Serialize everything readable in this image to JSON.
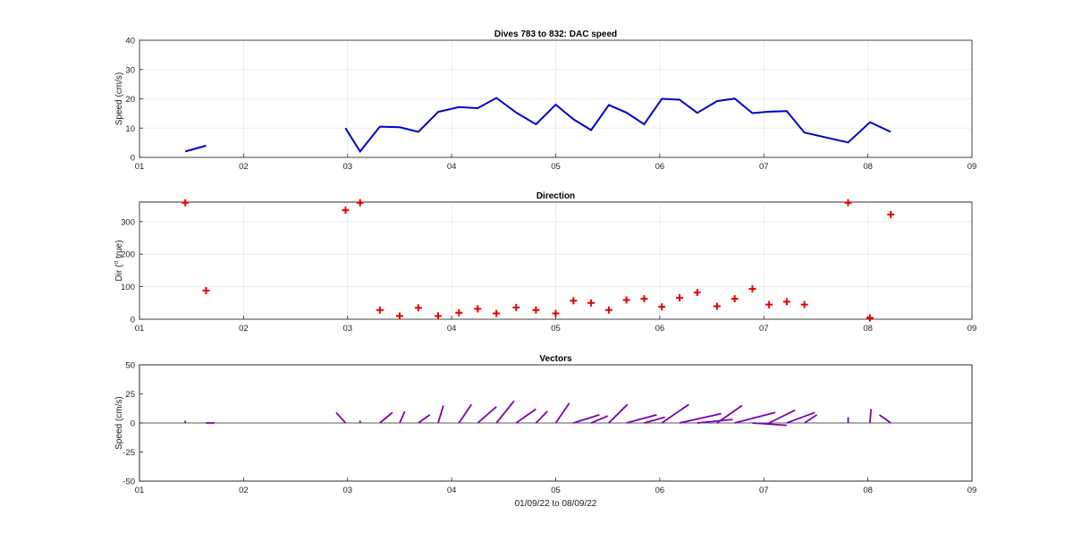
{
  "chart_data": [
    {
      "type": "line",
      "title": "Dives 783 to 832: DAC speed",
      "xlabel": "",
      "ylabel": "Speed (cm/s)",
      "xlim": [
        1,
        9
      ],
      "ylim": [
        0,
        40
      ],
      "xticks": [
        "01",
        "02",
        "03",
        "04",
        "05",
        "06",
        "07",
        "08",
        "09"
      ],
      "yticks": [
        "0",
        "10",
        "20",
        "30",
        "40"
      ],
      "grid": true,
      "colors": {
        "line": "#0000c8"
      },
      "segments": [
        {
          "x": [
            1.44,
            1.64
          ],
          "y": [
            2,
            4
          ]
        },
        {
          "x": [
            2.98,
            3.12,
            3.31,
            3.5,
            3.68,
            3.87,
            4.07,
            4.25,
            4.43,
            4.62,
            4.81,
            5.0,
            5.17,
            5.34,
            5.51,
            5.68,
            5.85,
            6.02,
            6.19,
            6.36,
            6.55,
            6.72,
            6.89,
            7.05,
            7.22,
            7.39,
            7.81,
            8.02,
            8.22
          ],
          "y": [
            10,
            2,
            10.5,
            10.3,
            8.7,
            15.5,
            17.2,
            16.8,
            20.3,
            15.3,
            11.3,
            18,
            13,
            9.3,
            17.9,
            15.3,
            11.3,
            20,
            19.7,
            15.2,
            19.2,
            20.1,
            15.1,
            15.6,
            15.8,
            8.5,
            5.1,
            12,
            8.7
          ]
        }
      ]
    },
    {
      "type": "scatter",
      "title": "Direction",
      "xlabel": "",
      "ylabel": "Dir (",
      "ylabel_degree": "o",
      "ylabel_rest": " true)",
      "xlim": [
        1,
        9
      ],
      "ylim": [
        0,
        360
      ],
      "xticks": [
        "01",
        "02",
        "03",
        "04",
        "05",
        "06",
        "07",
        "08",
        "09"
      ],
      "yticks": [
        "0",
        "100",
        "200",
        "300"
      ],
      "ytick_values": [
        0,
        100,
        200,
        300
      ],
      "grid": true,
      "colors": {
        "marker": "#e60000"
      },
      "points": [
        [
          1.44,
          358
        ],
        [
          1.64,
          88
        ],
        [
          2.98,
          335
        ],
        [
          3.12,
          358
        ],
        [
          3.31,
          28
        ],
        [
          3.5,
          10
        ],
        [
          3.68,
          35
        ],
        [
          3.87,
          10
        ],
        [
          4.07,
          20
        ],
        [
          4.25,
          32
        ],
        [
          4.43,
          18
        ],
        [
          4.62,
          36
        ],
        [
          4.81,
          28
        ],
        [
          5.0,
          18
        ],
        [
          5.17,
          57
        ],
        [
          5.34,
          50
        ],
        [
          5.51,
          28
        ],
        [
          5.68,
          59
        ],
        [
          5.85,
          63
        ],
        [
          6.02,
          38
        ],
        [
          6.19,
          66
        ],
        [
          6.36,
          82
        ],
        [
          6.55,
          40
        ],
        [
          6.72,
          63
        ],
        [
          6.89,
          93
        ],
        [
          7.05,
          45
        ],
        [
          7.22,
          54
        ],
        [
          7.39,
          45
        ],
        [
          7.81,
          358
        ],
        [
          8.02,
          4
        ],
        [
          8.22,
          322
        ]
      ]
    },
    {
      "type": "line",
      "title": "Vectors",
      "xlabel": "01/09/22 to 08/09/22",
      "ylabel": "Speed (cm/s)",
      "xlim": [
        1,
        9
      ],
      "ylim": [
        -50,
        50
      ],
      "xticks": [
        "01",
        "02",
        "03",
        "04",
        "05",
        "06",
        "07",
        "08",
        "09"
      ],
      "yticks": [
        "-50",
        "-25",
        "0",
        "25",
        "50"
      ],
      "ytick_values": [
        -50,
        -25,
        0,
        25,
        50
      ],
      "grid": false,
      "colors": {
        "vector": "#7a00b4",
        "zero_line": "#222222"
      },
      "vectors": [
        {
          "x0": 1.44,
          "x1": 1.44,
          "y1": 2
        },
        {
          "x0": 1.64,
          "x1": 1.72,
          "y1": 0
        },
        {
          "x0": 2.98,
          "x1": 2.89,
          "y1": 9
        },
        {
          "x0": 3.12,
          "x1": 3.12,
          "y1": 2
        },
        {
          "x0": 3.31,
          "x1": 3.43,
          "y1": 9
        },
        {
          "x0": 3.5,
          "x1": 3.55,
          "y1": 10
        },
        {
          "x0": 3.68,
          "x1": 3.79,
          "y1": 7
        },
        {
          "x0": 3.87,
          "x1": 3.92,
          "y1": 15
        },
        {
          "x0": 4.07,
          "x1": 4.19,
          "y1": 16
        },
        {
          "x0": 4.25,
          "x1": 4.43,
          "y1": 14
        },
        {
          "x0": 4.43,
          "x1": 4.6,
          "y1": 19
        },
        {
          "x0": 4.62,
          "x1": 4.81,
          "y1": 12
        },
        {
          "x0": 4.81,
          "x1": 4.92,
          "y1": 10
        },
        {
          "x0": 5.0,
          "x1": 5.13,
          "y1": 17
        },
        {
          "x0": 5.17,
          "x1": 5.42,
          "y1": 7
        },
        {
          "x0": 5.34,
          "x1": 5.5,
          "y1": 6
        },
        {
          "x0": 5.51,
          "x1": 5.69,
          "y1": 16
        },
        {
          "x0": 5.68,
          "x1": 5.97,
          "y1": 7
        },
        {
          "x0": 5.85,
          "x1": 6.05,
          "y1": 5
        },
        {
          "x0": 6.02,
          "x1": 6.28,
          "y1": 16
        },
        {
          "x0": 6.19,
          "x1": 6.59,
          "y1": 8
        },
        {
          "x0": 6.36,
          "x1": 6.7,
          "y1": 3
        },
        {
          "x0": 6.55,
          "x1": 6.79,
          "y1": 15
        },
        {
          "x0": 6.72,
          "x1": 7.11,
          "y1": 9
        },
        {
          "x0": 6.89,
          "x1": 7.22,
          "y1": -2
        },
        {
          "x0": 7.05,
          "x1": 7.3,
          "y1": 11
        },
        {
          "x0": 7.22,
          "x1": 7.49,
          "y1": 9
        },
        {
          "x0": 7.39,
          "x1": 7.51,
          "y1": 7
        },
        {
          "x0": 7.81,
          "x1": 7.81,
          "y1": 5
        },
        {
          "x0": 8.02,
          "x1": 8.03,
          "y1": 12
        },
        {
          "x0": 8.22,
          "x1": 8.11,
          "y1": 7
        }
      ]
    }
  ]
}
